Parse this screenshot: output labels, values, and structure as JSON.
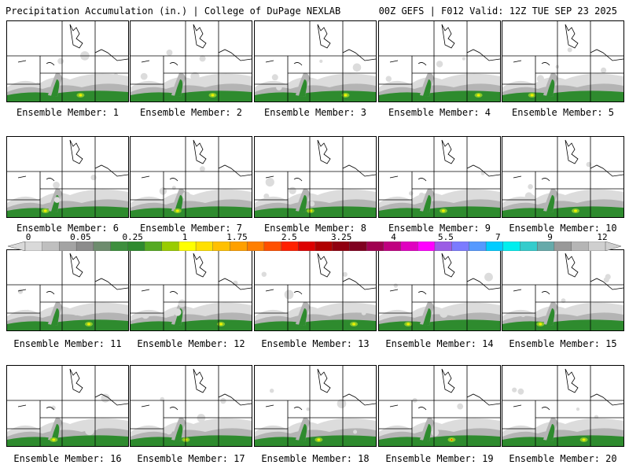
{
  "header": {
    "title_left": "Precipitation Accumulation (in.) | College of DuPage NEXLAB",
    "title_right": "00Z GEFS | F012 Valid: 12Z TUE SEP 23 2025"
  },
  "members": [
    {
      "label": "Ensemble Member: 1"
    },
    {
      "label": "Ensemble Member: 2"
    },
    {
      "label": "Ensemble Member: 3"
    },
    {
      "label": "Ensemble Member: 4"
    },
    {
      "label": "Ensemble Member: 5"
    },
    {
      "label": "Ensemble Member: 6"
    },
    {
      "label": "Ensemble Member: 7"
    },
    {
      "label": "Ensemble Member: 8"
    },
    {
      "label": "Ensemble Member: 9"
    },
    {
      "label": "Ensemble Member: 10"
    },
    {
      "label": "Ensemble Member: 11"
    },
    {
      "label": "Ensemble Member: 12"
    },
    {
      "label": "Ensemble Member: 13"
    },
    {
      "label": "Ensemble Member: 14"
    },
    {
      "label": "Ensemble Member: 15"
    },
    {
      "label": "Ensemble Member: 16"
    },
    {
      "label": "Ensemble Member: 17"
    },
    {
      "label": "Ensemble Member: 18"
    },
    {
      "label": "Ensemble Member: 19"
    },
    {
      "label": "Ensemble Member: 20"
    }
  ],
  "colorbar": {
    "tick_labels": [
      "0",
      "0.05",
      "0.25",
      "1",
      "1.75",
      "2.5",
      "3.25",
      "4",
      "5.5",
      "7",
      "9",
      "12"
    ],
    "colors": [
      "#d9d9d9",
      "#bfbfbf",
      "#a3a3a3",
      "#8c8c8c",
      "#6e8c6e",
      "#3d8f3d",
      "#2e8b2e",
      "#55aa22",
      "#99cc00",
      "#ffff00",
      "#ffe000",
      "#ffc000",
      "#ffa000",
      "#ff7f00",
      "#ff5000",
      "#ff2000",
      "#dd0000",
      "#b00000",
      "#900010",
      "#800020",
      "#a00050",
      "#c00080",
      "#e000c0",
      "#ff00ff",
      "#9b5de5",
      "#7b7bff",
      "#5599ff",
      "#00ccff",
      "#00eeee",
      "#33cccc",
      "#66aaaa",
      "#999999",
      "#b5b5b5",
      "#cfcfcf"
    ]
  },
  "legend_colors": {
    "light": "#dcdcdc",
    "mid": "#b4b4b4",
    "dark": "#8c8c8c",
    "green": "#2e8b2e",
    "lightgreen": "#88c828",
    "yellow": "#f2f200",
    "orange": "#ffa500",
    "red": "#ff2000"
  }
}
